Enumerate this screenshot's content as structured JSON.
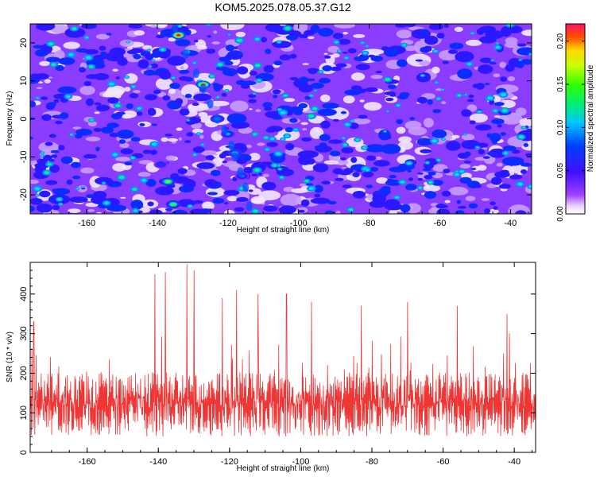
{
  "title": "KOM5.2025.078.05.37.G12",
  "chart_data": [
    {
      "type": "heatmap",
      "xlabel": "Height of straight line (km)",
      "ylabel": "Frequency (Hz)",
      "xlim": [
        -176,
        -34
      ],
      "ylim": [
        -25,
        25
      ],
      "xticks": [
        "-160",
        "-140",
        "-120",
        "-100",
        "-80",
        "-60",
        "-40"
      ],
      "yticks": [
        "20",
        "10",
        "0",
        "-10",
        "-20"
      ],
      "colorbar": {
        "label": "Normalized spectral amplitude",
        "range": [
          0.0,
          0.22
        ],
        "ticks": [
          "0.00",
          "0.05",
          "0.10",
          "0.15",
          "0.20"
        ]
      },
      "ridge": [
        {
          "x": -134,
          "y": 22,
          "v": 0.22
        },
        {
          "x": -127,
          "y": 9,
          "v": 0.21
        },
        {
          "x": -123,
          "y": 0,
          "v": 0.12
        },
        {
          "x": -120,
          "y": -4,
          "v": 0.1
        },
        {
          "x": -118,
          "y": -9,
          "v": 0.12
        },
        {
          "x": -116,
          "y": -15,
          "v": 0.09
        },
        {
          "x": -137,
          "y": -16.5,
          "v": 0.16
        },
        {
          "x": -135.5,
          "y": -22.5,
          "v": 0.15
        },
        {
          "x": -139,
          "y": -12,
          "v": 0.08
        }
      ]
    },
    {
      "type": "line",
      "xlabel": "Height of straight line (km)",
      "ylabel": "SNR (10 * v/v)",
      "xlim": [
        -176,
        -34
      ],
      "ylim": [
        0,
        480
      ],
      "xticks": [
        "-160",
        "-140",
        "-120",
        "-100",
        "-80",
        "-60",
        "-40"
      ],
      "yticks": [
        "0",
        "100",
        "200",
        "300",
        "400"
      ],
      "color": "#f03535",
      "baseline": 130,
      "peaks": [
        {
          "x": -175,
          "y": 330
        },
        {
          "x": -141,
          "y": 450
        },
        {
          "x": -138,
          "y": 455
        },
        {
          "x": -132,
          "y": 475
        },
        {
          "x": -130,
          "y": 460
        },
        {
          "x": -122,
          "y": 390
        },
        {
          "x": -118,
          "y": 410
        },
        {
          "x": -112,
          "y": 400
        },
        {
          "x": -104,
          "y": 400
        },
        {
          "x": -97,
          "y": 380
        },
        {
          "x": -83,
          "y": 370
        },
        {
          "x": -70,
          "y": 380
        },
        {
          "x": -56,
          "y": 370
        },
        {
          "x": -42,
          "y": 350
        }
      ]
    }
  ]
}
